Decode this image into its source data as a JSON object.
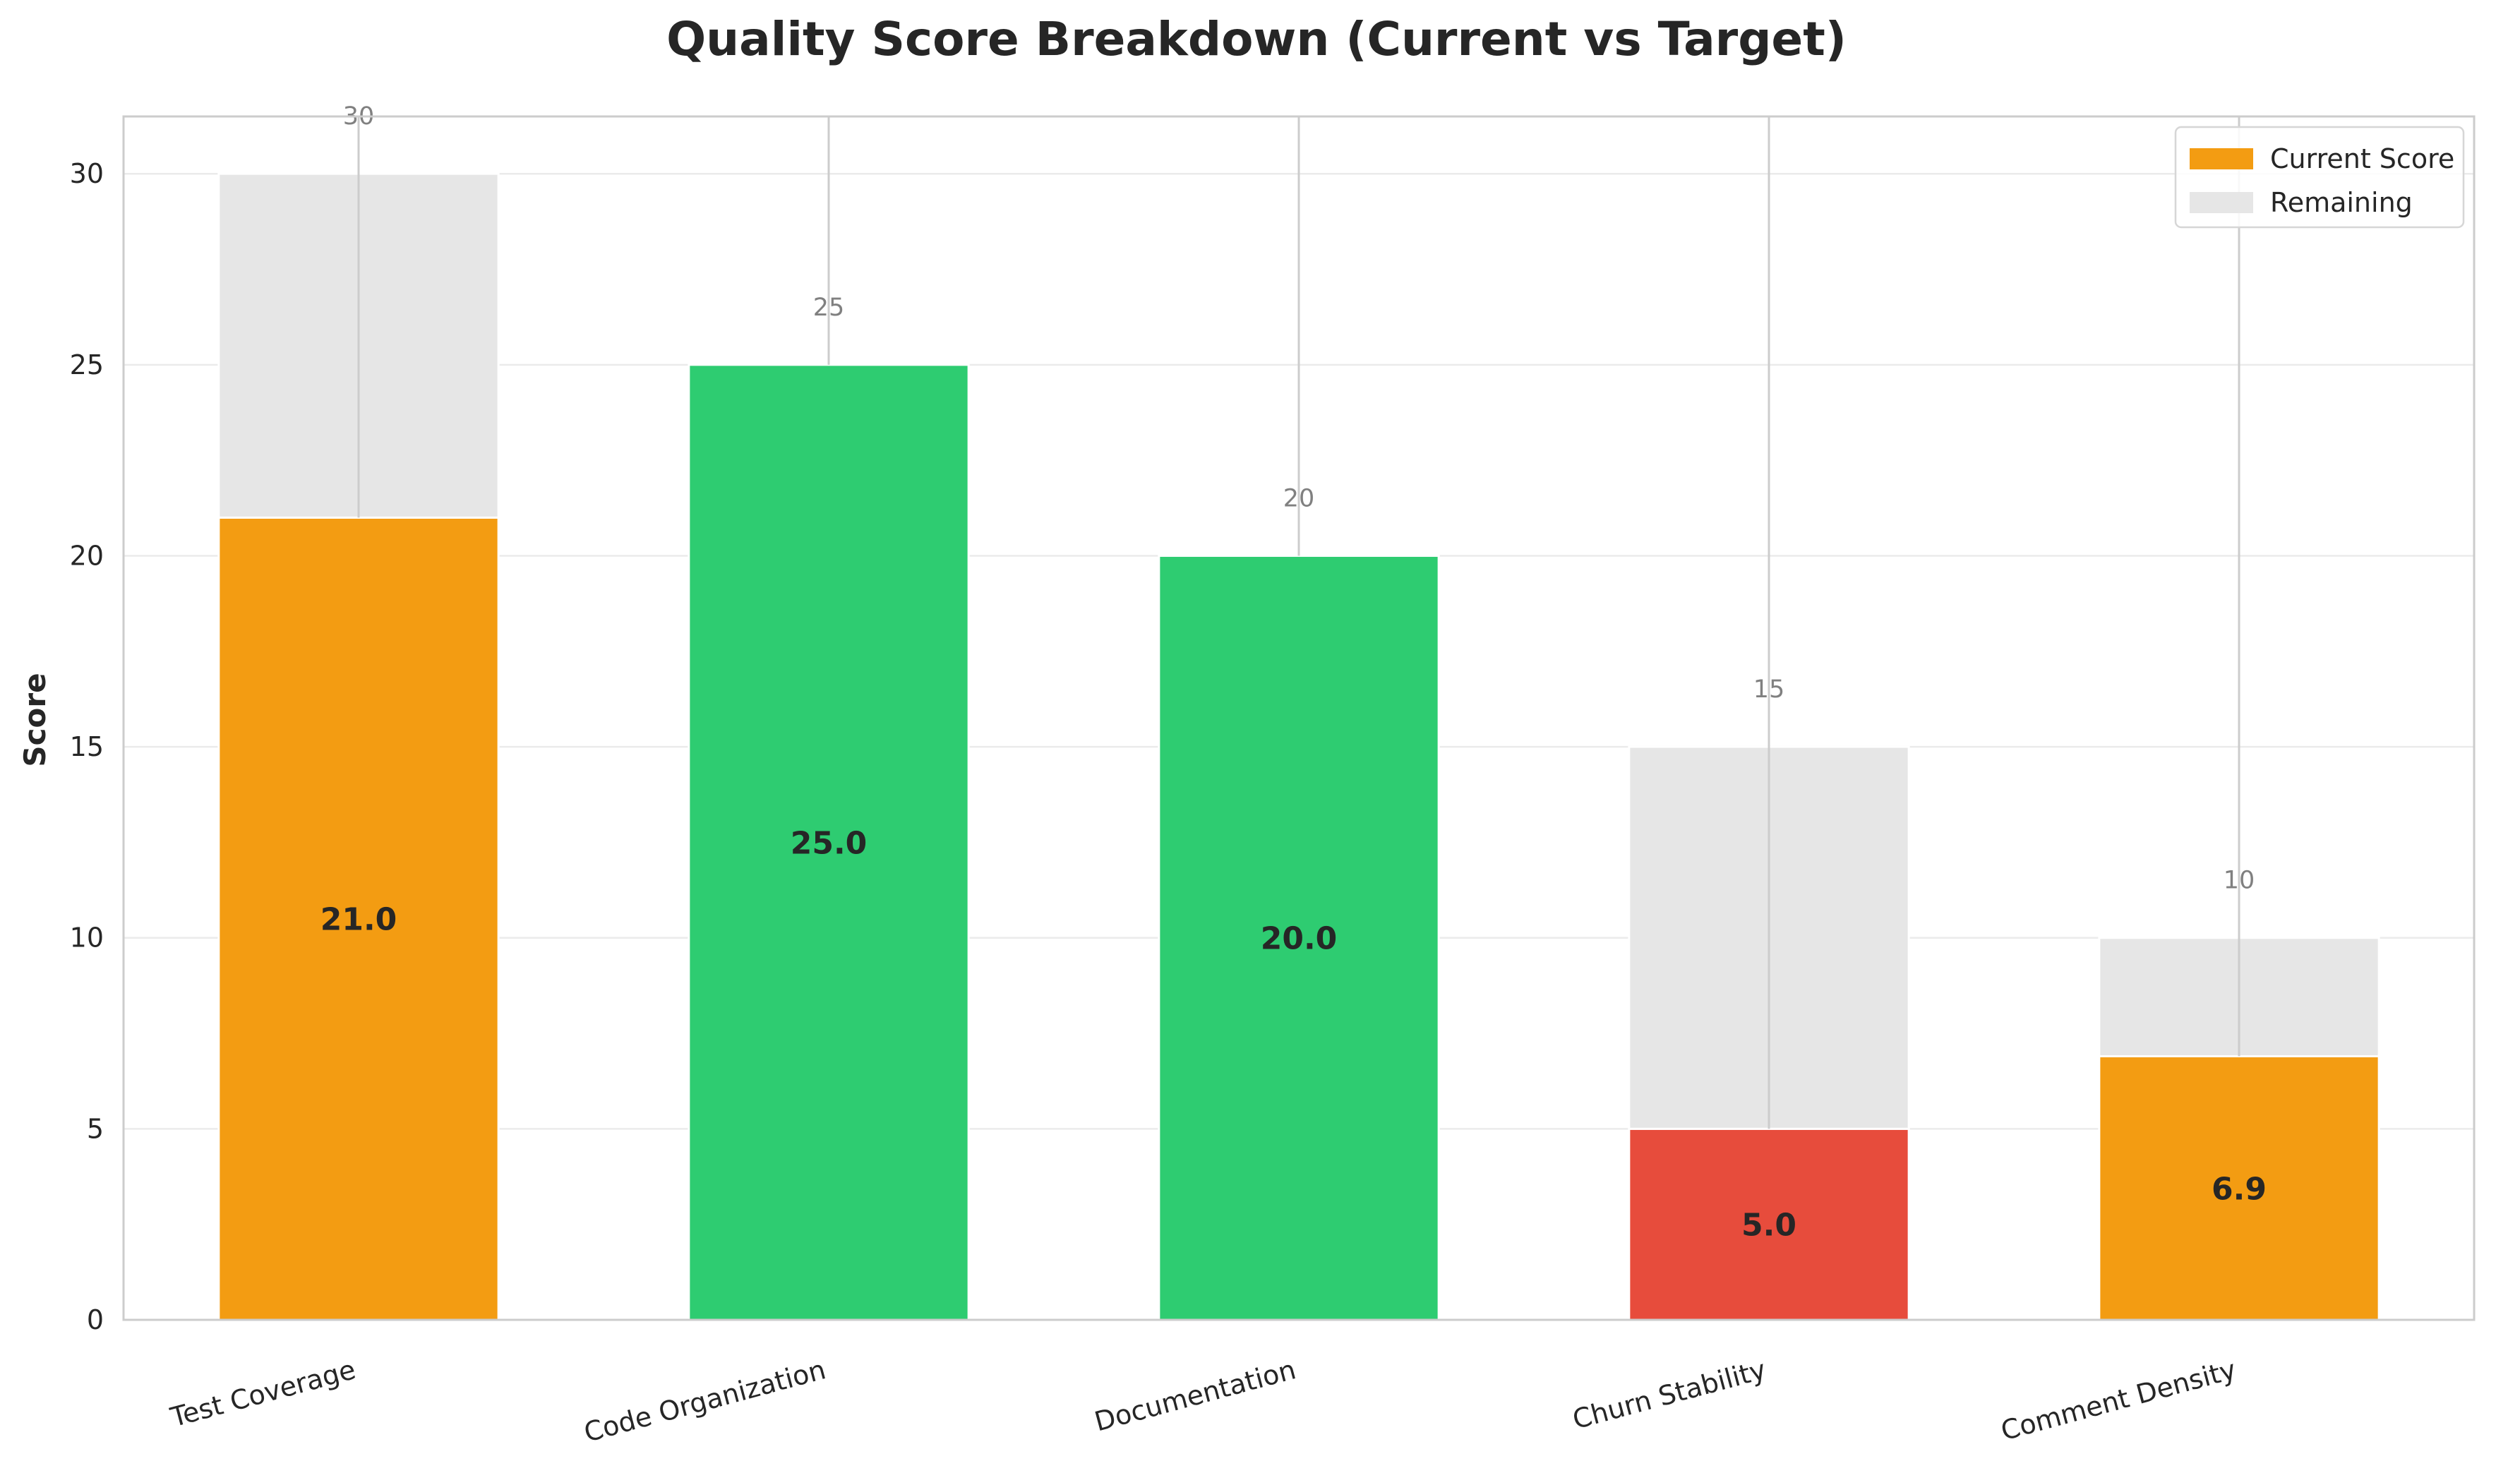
{
  "chart_data": {
    "type": "bar",
    "stacked": true,
    "title": "Quality Score Breakdown (Current vs Target)",
    "xlabel": "",
    "ylabel": "Score",
    "ylim": [
      0,
      31.5
    ],
    "yticks": [
      0,
      5,
      10,
      15,
      20,
      25,
      30
    ],
    "grid": true,
    "legend_position": "top-right",
    "categories": [
      "Test Coverage",
      "Code Organization",
      "Documentation",
      "Churn Stability",
      "Comment Density"
    ],
    "series": [
      {
        "name": "Current Score",
        "values": [
          21.0,
          25.0,
          20.0,
          5.0,
          6.9
        ],
        "value_labels": [
          "21.0",
          "25.0",
          "20.0",
          "5.0",
          "6.9"
        ],
        "colors": [
          "#f39c12",
          "#2ecc71",
          "#2ecc71",
          "#e74c3c",
          "#f39c12"
        ]
      },
      {
        "name": "Remaining",
        "values": [
          9.0,
          0.0,
          0.0,
          10.0,
          3.1
        ],
        "color": "#e6e6e6"
      }
    ],
    "targets": [
      30,
      25,
      20,
      15,
      10
    ],
    "legend": [
      {
        "label": "Current Score",
        "color": "#f39c12"
      },
      {
        "label": "Remaining",
        "color": "#e6e6e6"
      }
    ]
  }
}
